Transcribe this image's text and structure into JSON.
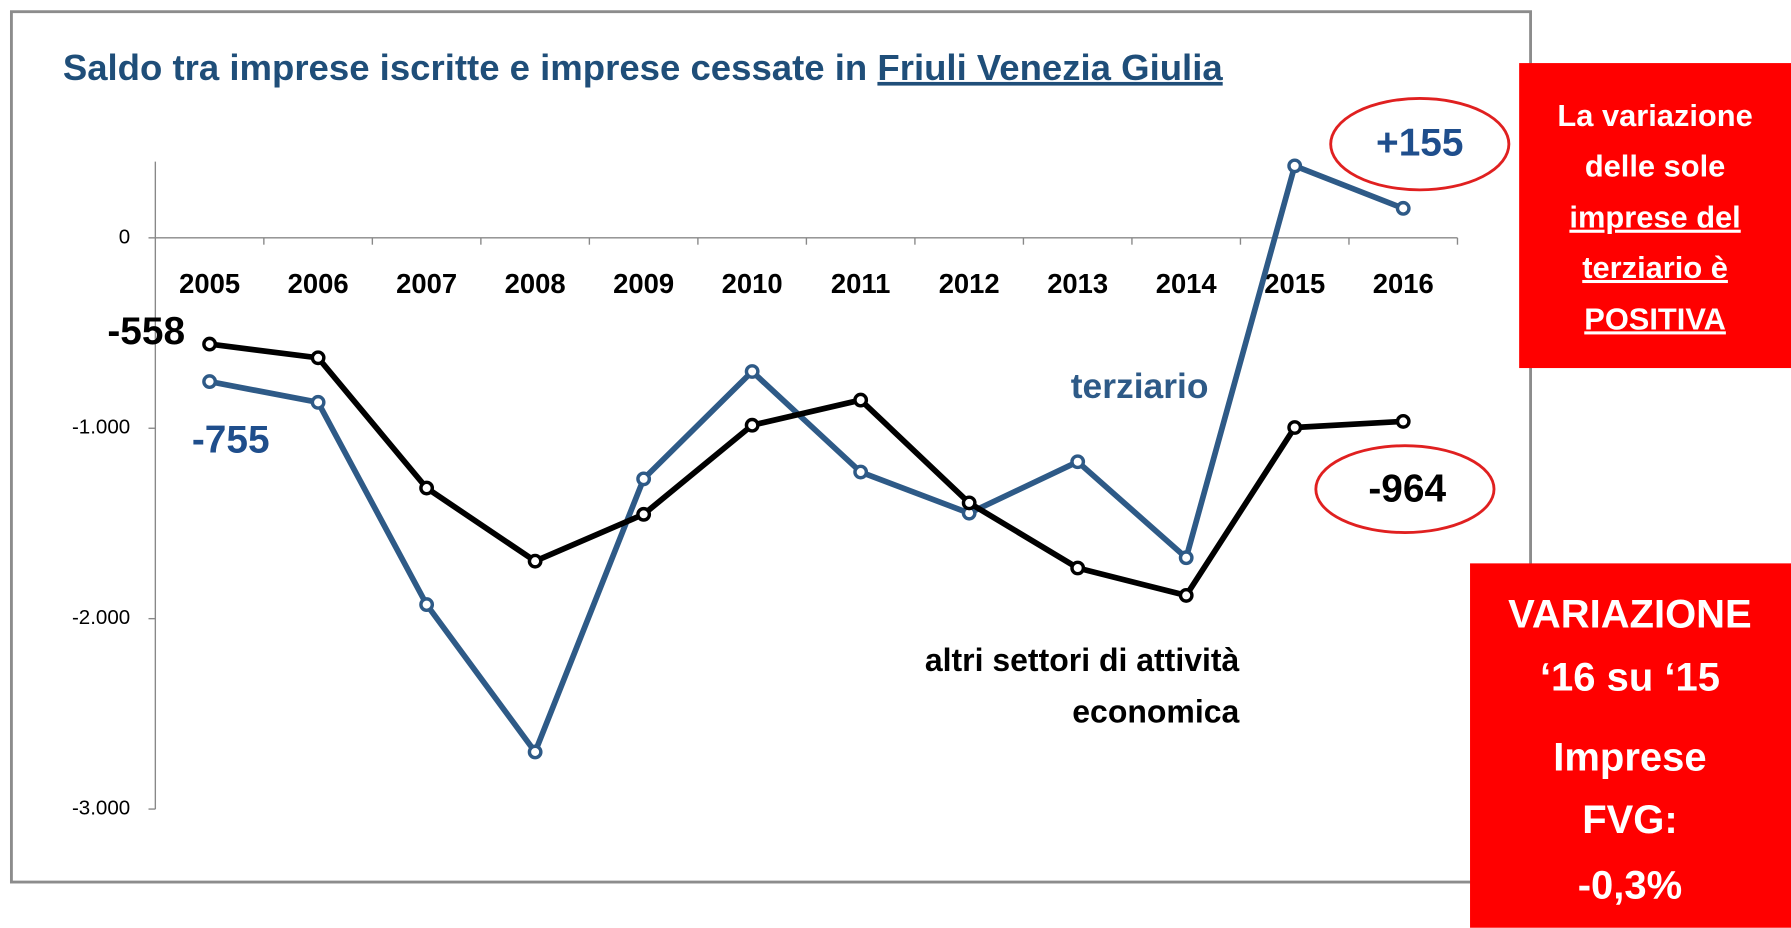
{
  "chart_data": {
    "type": "line",
    "title": "Saldo tra imprese iscritte e imprese cessate in",
    "title_underlined": "Friuli Venezia Giulia",
    "categories": [
      "2005",
      "2006",
      "2007",
      "2008",
      "2009",
      "2010",
      "2011",
      "2012",
      "2013",
      "2014",
      "2015",
      "2016"
    ],
    "series": [
      {
        "name_lines": [
          "terziario"
        ],
        "color": "#2e5a87",
        "values": [
          -755,
          -864,
          -1926,
          -2700,
          -1266,
          -702,
          -1230,
          -1446,
          -1176,
          -1680,
          378,
          155
        ],
        "value_labels": [
          "-755",
          null,
          null,
          null,
          null,
          null,
          null,
          null,
          null,
          null,
          null,
          "+155"
        ]
      },
      {
        "name_lines": [
          "altri settori di attività",
          "economica"
        ],
        "color": "#000000",
        "values": [
          -558,
          -630,
          -1314,
          -1698,
          -1452,
          -984,
          -852,
          -1392,
          -1734,
          -1878,
          -996,
          -964
        ],
        "value_labels": [
          "-558",
          null,
          null,
          null,
          null,
          null,
          null,
          null,
          null,
          null,
          null,
          "-964"
        ]
      }
    ],
    "ylim": [
      -3000,
      400
    ],
    "yticks": [
      0,
      {
        "value": -1000,
        "label": "-1.000"
      },
      {
        "value": -2000,
        "label": "-2.000"
      },
      {
        "value": -3000,
        "label": "-3.000"
      }
    ]
  },
  "callouts": [
    {
      "lines": [
        {
          "text": "La variazione"
        },
        {
          "text": "delle sole"
        },
        {
          "text": "imprese del",
          "underline": true
        },
        {
          "text": "terziario è",
          "underline": true
        },
        {
          "text": "POSITIVA",
          "underline": true
        }
      ]
    },
    {
      "lines": [
        {
          "text": "VARIAZIONE"
        },
        {
          "text": "‘16 su ‘15"
        },
        {
          "text": "Imprese"
        },
        {
          "text": "FVG:"
        },
        {
          "text": "-0,3%"
        }
      ]
    }
  ]
}
